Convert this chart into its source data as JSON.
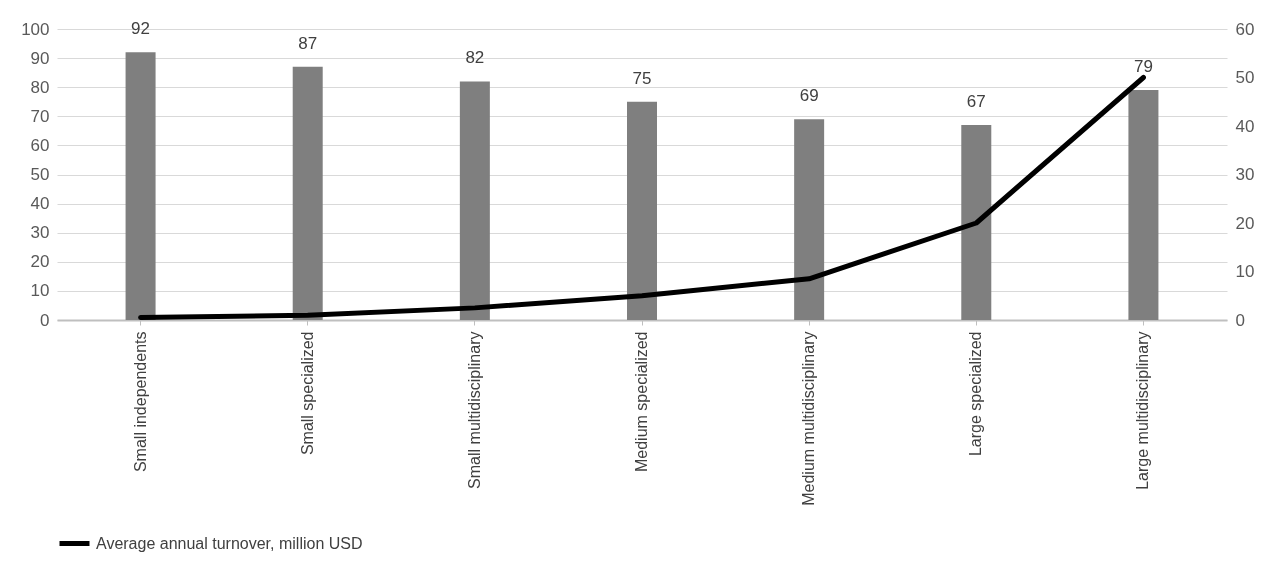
{
  "chart_data": {
    "type": "bar",
    "categories": [
      "Small independents",
      "Small specialized",
      "Small multidisciplinary",
      "Medium specialized",
      "Medium multidisciplinary",
      "Large specialized",
      "Large multidisciplinary"
    ],
    "series": [
      {
        "color": "#7f7f7f",
        "values": [
          92,
          87,
          82,
          75,
          69,
          67,
          79
        ],
        "value_labels": [
          "92",
          "87",
          "82",
          "75",
          "69",
          "67",
          "79"
        ]
      },
      {
        "name": "Average annual turnover, million USD",
        "type": "line",
        "axis": "y2",
        "color": "#000000",
        "values": [
          0.5,
          1,
          2.5,
          5,
          8.5,
          20,
          50
        ]
      }
    ],
    "ylim": [
      0,
      100
    ],
    "yticks": [
      0,
      10,
      20,
      30,
      40,
      50,
      60,
      70,
      80,
      90,
      100
    ],
    "y2lim": [
      0,
      60
    ],
    "y2ticks": [
      0,
      10,
      20,
      30,
      40,
      50,
      60
    ],
    "grid": "y",
    "legend": "bottom",
    "marker": "none",
    "line_style": "solid"
  }
}
